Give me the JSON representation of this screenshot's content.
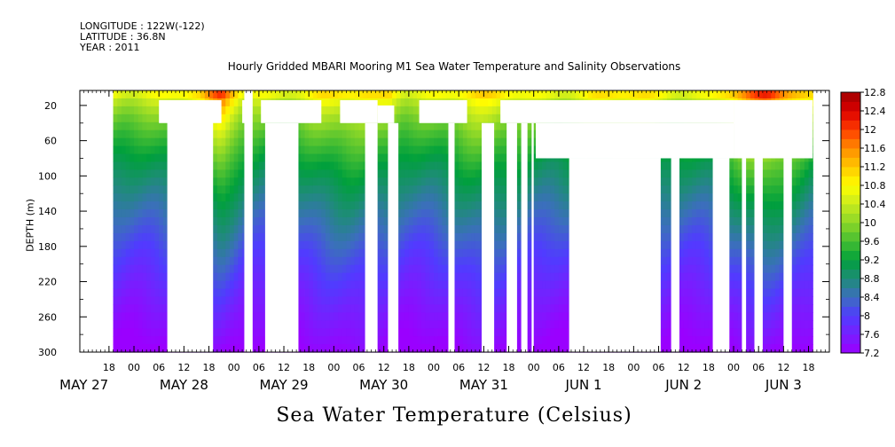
{
  "header": {
    "longitude": "LONGITUDE : 122W(-122)",
    "latitude": "LATITUDE : 36.8N",
    "year": "YEAR : 2011"
  },
  "chart_data": {
    "type": "heatmap",
    "title": "Hourly Gridded MBARI Mooring M1 Sea Water Temperature and Salinity Observations",
    "xlabel": "Sea Water Temperature (Celsius)",
    "ylabel": "DEPTH (m)",
    "x_units": "hours since 2011-05-27 00:00",
    "xlim": [
      11,
      191
    ],
    "ylim": [
      300,
      3
    ],
    "y_ticks": [
      20,
      60,
      100,
      140,
      180,
      220,
      260,
      300
    ],
    "x_hour_ticks": [
      {
        "h": 18,
        "label": "18"
      },
      {
        "h": 24,
        "label": "00"
      },
      {
        "h": 30,
        "label": "06"
      },
      {
        "h": 36,
        "label": "12"
      },
      {
        "h": 42,
        "label": "18"
      },
      {
        "h": 48,
        "label": "00"
      },
      {
        "h": 54,
        "label": "06"
      },
      {
        "h": 60,
        "label": "12"
      },
      {
        "h": 66,
        "label": "18"
      },
      {
        "h": 72,
        "label": "00"
      },
      {
        "h": 78,
        "label": "06"
      },
      {
        "h": 84,
        "label": "12"
      },
      {
        "h": 90,
        "label": "18"
      },
      {
        "h": 96,
        "label": "00"
      },
      {
        "h": 102,
        "label": "06"
      },
      {
        "h": 108,
        "label": "12"
      },
      {
        "h": 114,
        "label": "18"
      },
      {
        "h": 120,
        "label": "00"
      },
      {
        "h": 126,
        "label": "06"
      },
      {
        "h": 132,
        "label": "12"
      },
      {
        "h": 138,
        "label": "18"
      },
      {
        "h": 144,
        "label": "00"
      },
      {
        "h": 150,
        "label": "06"
      },
      {
        "h": 156,
        "label": "12"
      },
      {
        "h": 162,
        "label": "18"
      },
      {
        "h": 168,
        "label": "00"
      },
      {
        "h": 174,
        "label": "06"
      },
      {
        "h": 180,
        "label": "12"
      },
      {
        "h": 186,
        "label": "18"
      }
    ],
    "x_date_labels": [
      {
        "h": 12,
        "label": "MAY 27"
      },
      {
        "h": 36,
        "label": "MAY 28"
      },
      {
        "h": 60,
        "label": "MAY 29"
      },
      {
        "h": 84,
        "label": "MAY 30"
      },
      {
        "h": 108,
        "label": "MAY 31"
      },
      {
        "h": 132,
        "label": "JUN  1"
      },
      {
        "h": 156,
        "label": "JUN  2"
      },
      {
        "h": 180,
        "label": "JUN  3"
      }
    ],
    "colorbar_levels": [
      7.2,
      7.6,
      8,
      8.4,
      8.8,
      9.2,
      9.6,
      10,
      10.4,
      10.8,
      11.2,
      11.6,
      12,
      12.4,
      12.8
    ],
    "colorbar_labels": [
      "12.8",
      "12.4",
      "12",
      "11.6",
      "11.2",
      "10.8",
      "10.4",
      "10",
      "9.6",
      "9.2",
      "8.8",
      "8.4",
      "8",
      "7.6",
      "7.2"
    ],
    "surface_temperature_approx_celsius": 11.2,
    "bottom_temperature_approx_celsius": 7.2,
    "data_start_hour": 19,
    "data_end_hour": 187,
    "missing_data_blocks": [
      {
        "h0": 32,
        "h1": 43,
        "d0": 23,
        "d1": 300
      },
      {
        "h0": 30,
        "h1": 45,
        "d0": 14,
        "d1": 40
      },
      {
        "h0": 50,
        "h1": 51,
        "d0": 14,
        "d1": 40
      },
      {
        "h0": 50.5,
        "h1": 52.5,
        "d0": 3,
        "d1": 300
      },
      {
        "h0": 55.5,
        "h1": 63.5,
        "d0": 40,
        "d1": 300
      },
      {
        "h0": 54.5,
        "h1": 69,
        "d0": 14,
        "d1": 40
      },
      {
        "h0": 73.5,
        "h1": 82.5,
        "d0": 14,
        "d1": 40
      },
      {
        "h0": 79.5,
        "h1": 82.5,
        "d0": 40,
        "d1": 300
      },
      {
        "h0": 85,
        "h1": 87.5,
        "d0": 40,
        "d1": 300
      },
      {
        "h0": 82.5,
        "h1": 86.5,
        "d0": 20,
        "d1": 40
      },
      {
        "h0": 92.5,
        "h1": 104,
        "d0": 14,
        "d1": 40
      },
      {
        "h0": 99.5,
        "h1": 101,
        "d0": 40,
        "d1": 300
      },
      {
        "h0": 107.5,
        "h1": 110.5,
        "d0": 40,
        "d1": 300
      },
      {
        "h0": 112,
        "h1": 168,
        "d0": 14,
        "d1": 40
      },
      {
        "h0": 113.5,
        "h1": 116,
        "d0": 40,
        "d1": 300
      },
      {
        "h0": 117,
        "h1": 118.5,
        "d0": 40,
        "d1": 300
      },
      {
        "h0": 119.5,
        "h1": 120,
        "d0": 40,
        "d1": 300
      },
      {
        "h0": 120.5,
        "h1": 168,
        "d0": 40,
        "d1": 80
      },
      {
        "h0": 128.5,
        "h1": 150.5,
        "d0": 80,
        "d1": 300
      },
      {
        "h0": 153,
        "h1": 155,
        "d0": 80,
        "d1": 300
      },
      {
        "h0": 163,
        "h1": 167,
        "d0": 80,
        "d1": 300
      },
      {
        "h0": 170,
        "h1": 171,
        "d0": 80,
        "d1": 300
      },
      {
        "h0": 173,
        "h1": 175,
        "d0": 80,
        "d1": 300
      },
      {
        "h0": 180,
        "h1": 182,
        "d0": 80,
        "d1": 300
      },
      {
        "h0": 168,
        "h1": 187,
        "d0": 14,
        "d1": 80
      }
    ],
    "warm_surface_patches": [
      {
        "h0": 40,
        "h1": 50,
        "peak": 12.4
      },
      {
        "h0": 82,
        "h1": 89,
        "peak": 11.6
      },
      {
        "h0": 162,
        "h1": 190,
        "peak": 12.4
      }
    ]
  }
}
